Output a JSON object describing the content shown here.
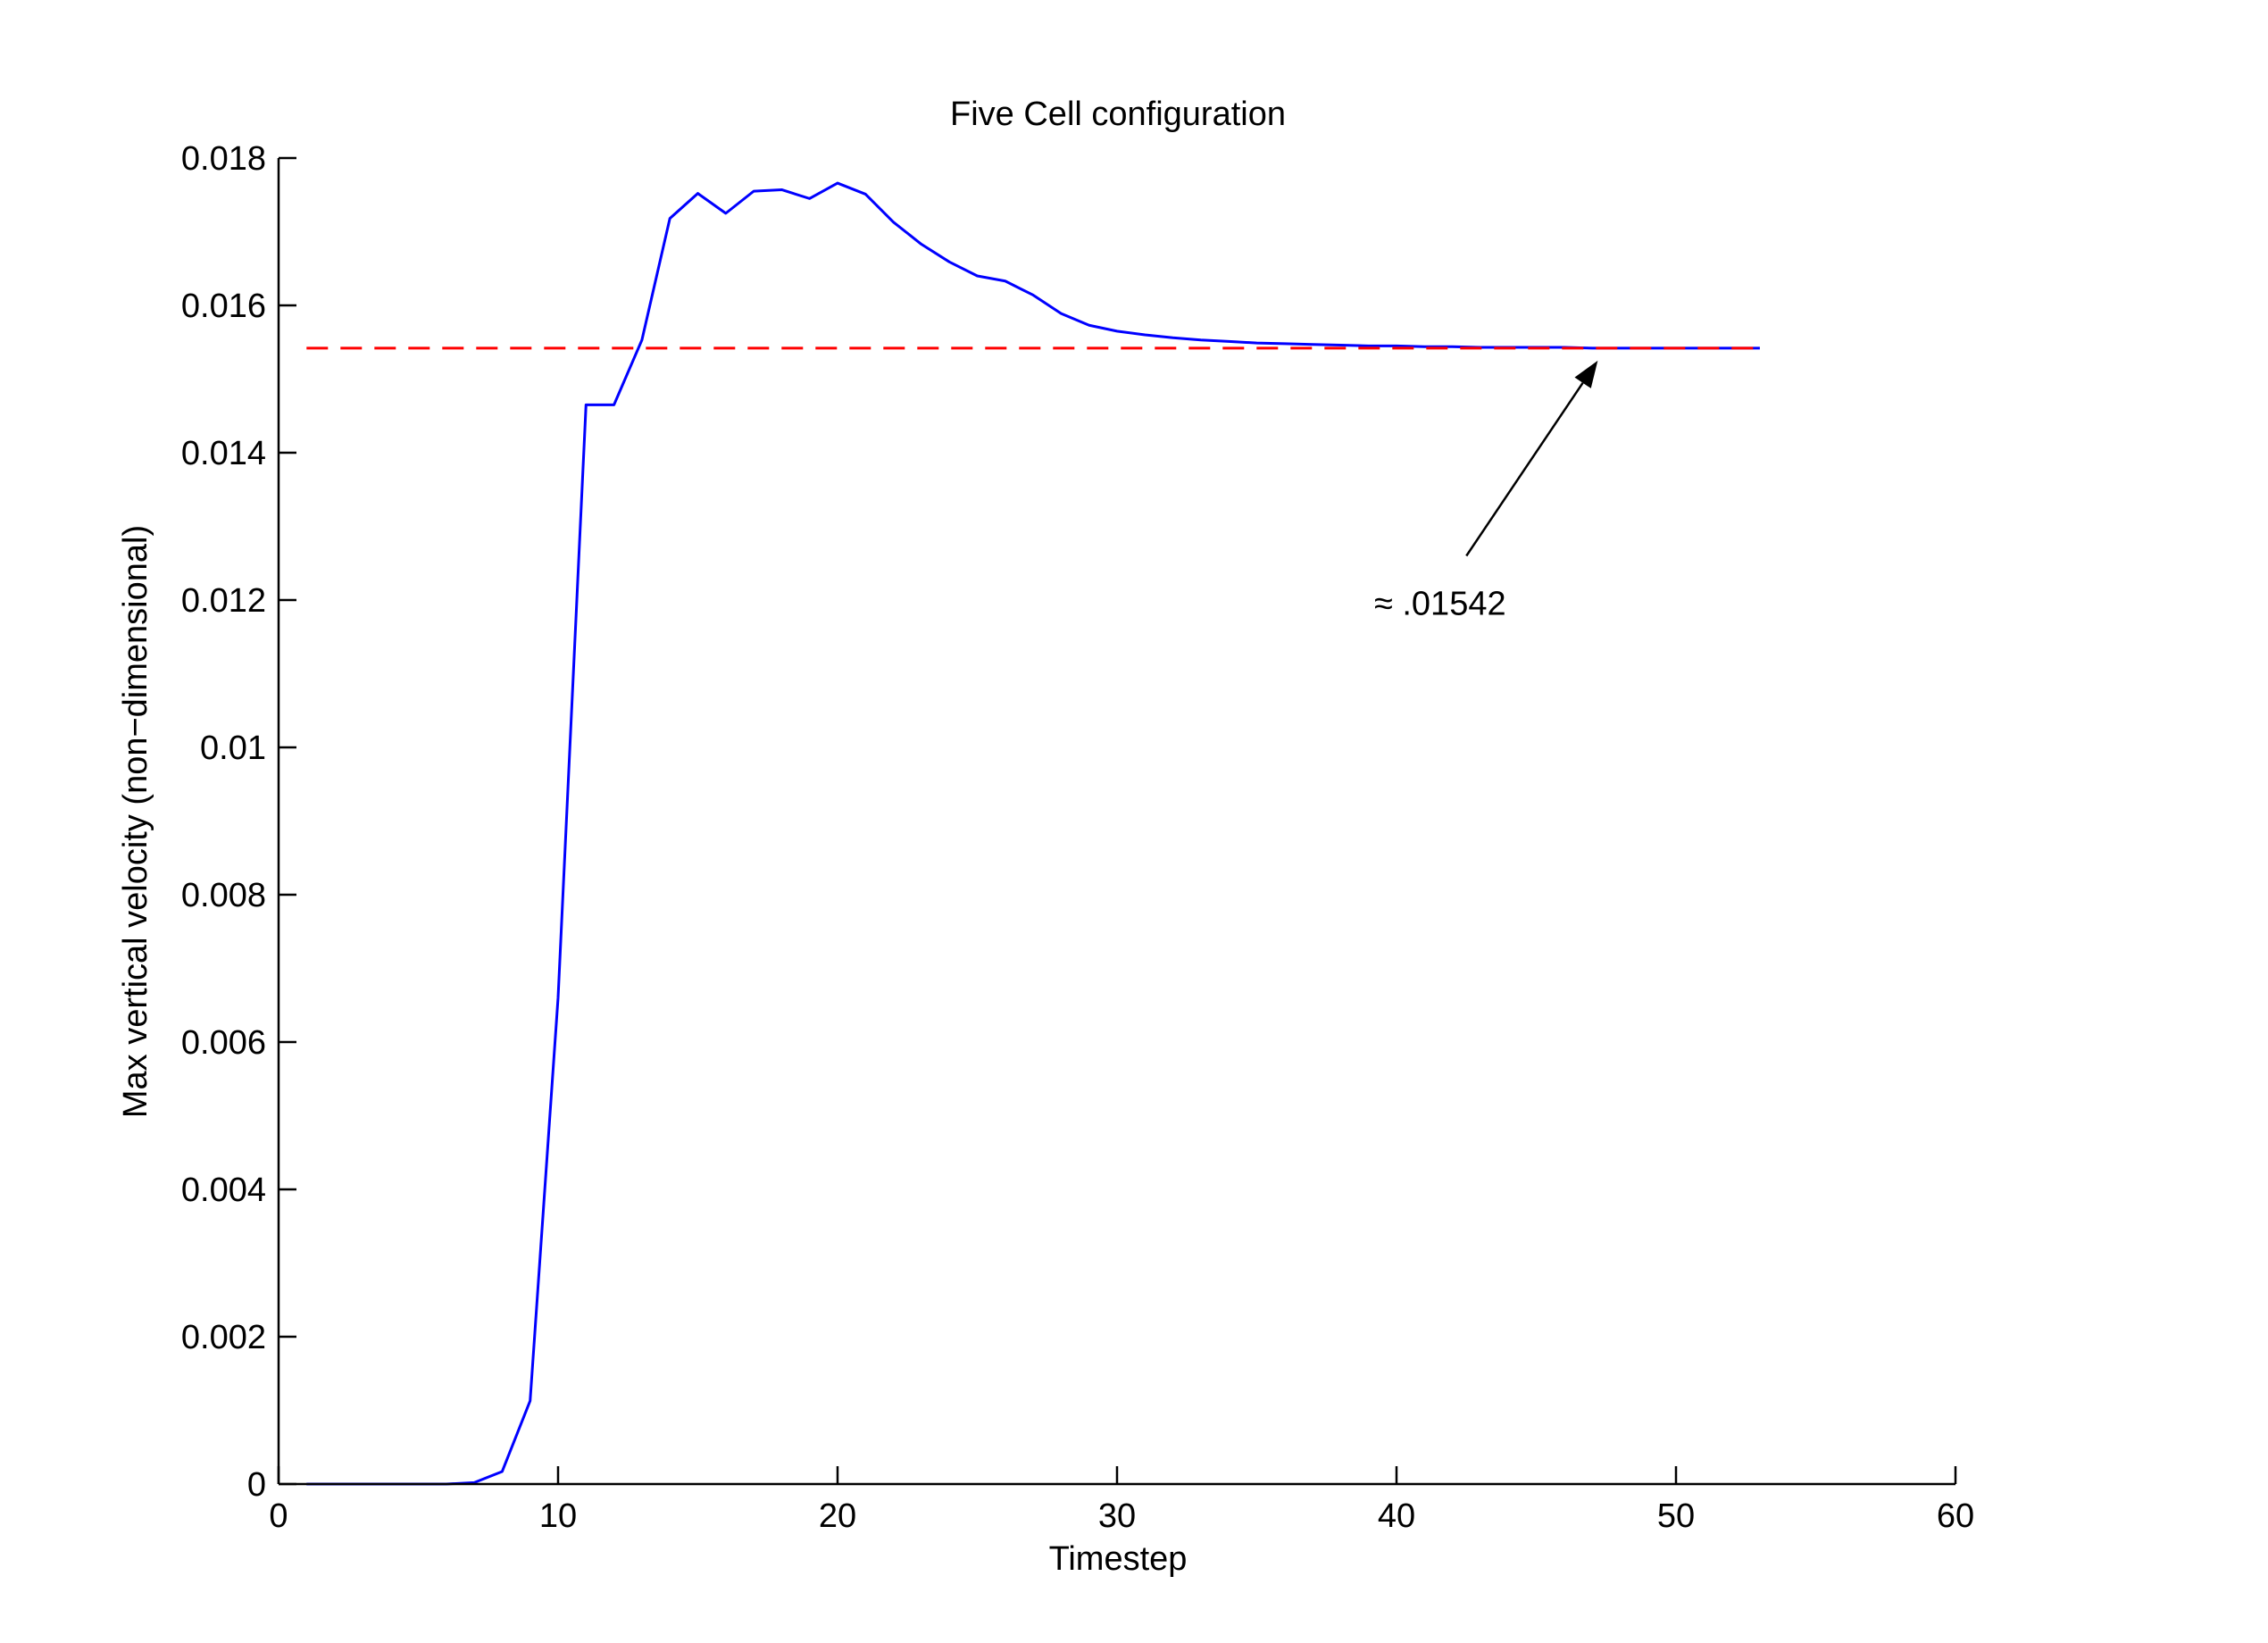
{
  "chart_data": {
    "type": "line",
    "title": "Five Cell configuration",
    "xlabel": "Timestep",
    "ylabel": "Max vertical velocity (non−dimensional)",
    "xlim": [
      0,
      60
    ],
    "ylim": [
      0,
      0.018
    ],
    "xticks": [
      0,
      10,
      20,
      30,
      40,
      50,
      60
    ],
    "xtick_labels": [
      "0",
      "10",
      "20",
      "30",
      "40",
      "50",
      "60"
    ],
    "yticks": [
      0,
      0.002,
      0.004,
      0.006,
      0.008,
      0.01,
      0.012,
      0.014,
      0.016,
      0.018
    ],
    "ytick_labels": [
      "0",
      "0.002",
      "0.004",
      "0.006",
      "0.008",
      "0.01",
      "0.012",
      "0.014",
      "0.016",
      "0.018"
    ],
    "grid": false,
    "series": [
      {
        "color": "#0000ff",
        "style": "solid",
        "x": [
          1,
          2,
          3,
          4,
          5,
          6,
          7,
          8,
          9,
          10,
          11,
          12,
          13,
          14,
          15,
          16,
          17,
          18,
          19,
          20,
          21,
          22,
          23,
          24,
          25,
          26,
          27,
          28,
          29,
          30,
          31,
          32,
          33,
          34,
          35,
          36,
          37,
          38,
          39,
          40,
          41,
          42,
          43,
          44,
          45,
          46,
          47,
          48,
          49,
          50,
          51,
          52,
          53
        ],
        "y": [
          0,
          0,
          0,
          0,
          0,
          0,
          2e-05,
          0.00017,
          0.00113,
          0.0066,
          0.01465,
          0.01465,
          0.01553,
          0.01718,
          0.01752,
          0.01725,
          0.01755,
          0.01757,
          0.01745,
          0.01766,
          0.01751,
          0.01713,
          0.01683,
          0.01659,
          0.0164,
          0.01633,
          0.01614,
          0.01589,
          0.01573,
          0.01565,
          0.0156,
          0.01556,
          0.01553,
          0.01551,
          0.01549,
          0.01548,
          0.01547,
          0.01546,
          0.01545,
          0.01545,
          0.01544,
          0.01544,
          0.01543,
          0.01543,
          0.01543,
          0.01543,
          0.01542,
          0.01542,
          0.01542,
          0.01542,
          0.01542,
          0.01542,
          0.01542
        ]
      },
      {
        "color": "#ff0000",
        "style": "dashed",
        "x": [
          1,
          53
        ],
        "y": [
          0.01542,
          0.01542
        ]
      }
    ],
    "annotations": [
      {
        "text": "≈ .01542",
        "arrow_tail": [
          42.5,
          0.0126
        ],
        "arrow_head": [
          47.2,
          0.01525
        ],
        "text_x": 39.2,
        "text_y": 0.0118
      }
    ]
  }
}
